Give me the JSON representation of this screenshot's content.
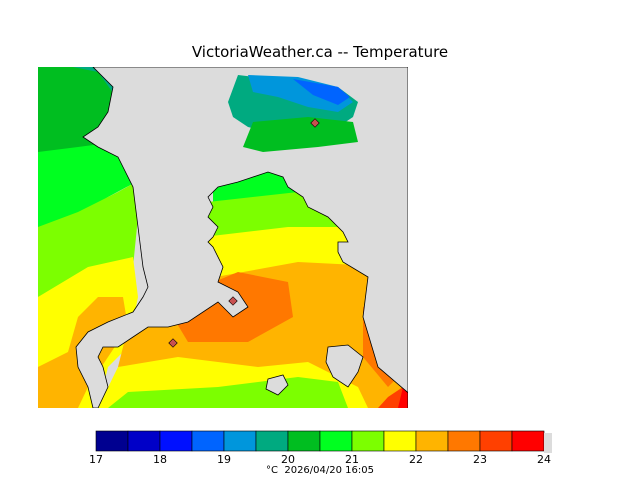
{
  "header": {
    "title": "VictoriaWeather.ca -- Temperature"
  },
  "legend": {
    "colors": [
      "#000090",
      "#0000c8",
      "#0010ff",
      "#0064ff",
      "#0096dc",
      "#00aa80",
      "#00be20",
      "#00ff20",
      "#7cff00",
      "#ffff00",
      "#ffb400",
      "#ff7800",
      "#ff4000",
      "#ff0000"
    ],
    "ticks": [
      "17",
      "18",
      "19",
      "20",
      "21",
      "22",
      "23",
      "24"
    ],
    "unit": "°C",
    "timestamp": "2026/04/20 16:05"
  },
  "map": {
    "land_color": "#dcdcdc",
    "stations": [
      "station-north",
      "station-central",
      "station-southwest"
    ]
  }
}
